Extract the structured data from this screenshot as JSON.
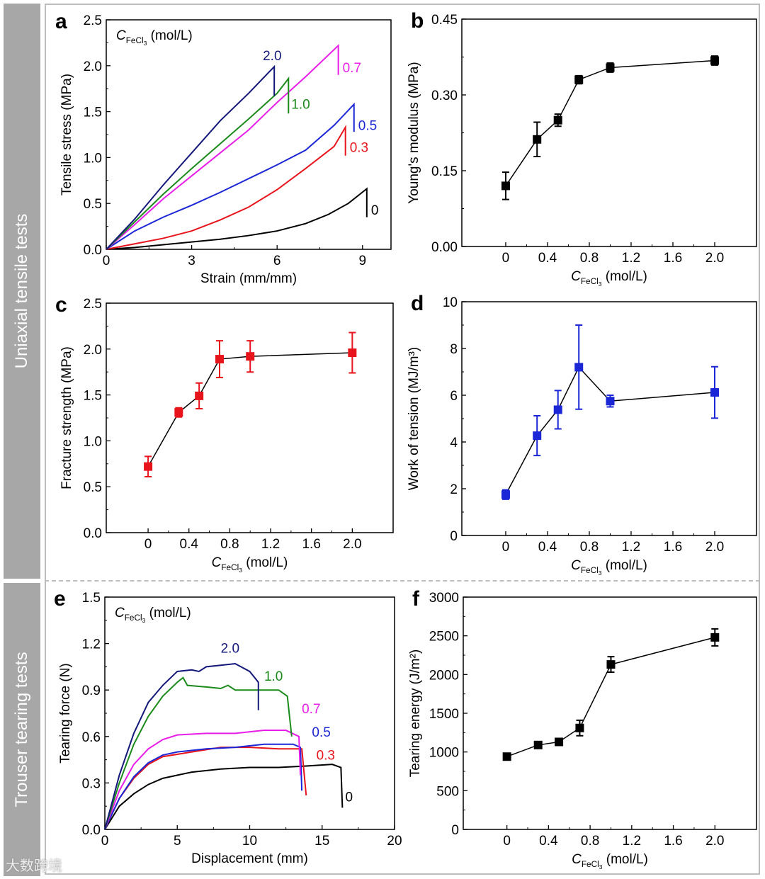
{
  "sections": [
    {
      "label": "Uniaxial tensile tests"
    },
    {
      "label": "Trouser tearing tests"
    }
  ],
  "watermark": "大数跨境",
  "conc_label": {
    "c": "C",
    "sub": "FeCl",
    "subsub": "3",
    "unit": " (mol/L)"
  },
  "colors": {
    "0": "#000000",
    "0.3": "#e8141c",
    "0.5": "#1b27d6",
    "0.7": "#e81ee8",
    "1.0": "#1a8a1a",
    "2.0": "#14187a",
    "red": "#e8141c",
    "blue": "#1b27d6",
    "black": "#000000"
  },
  "chart_data": [
    {
      "panel": "a",
      "type": "line",
      "xlabel": "Strain (mm/mm)",
      "ylabel": "Tensile stress (MPa)",
      "xlim": [
        0,
        10
      ],
      "ylim": [
        0,
        2.5
      ],
      "xticks": [
        0,
        3,
        6,
        9
      ],
      "yticks": [
        0.0,
        0.5,
        1.0,
        1.5,
        2.0,
        2.5
      ],
      "xtick_labels": [
        "0",
        "3",
        "6",
        "9"
      ],
      "ytick_labels": [
        "0.0",
        "0.5",
        "1.0",
        "1.5",
        "2.0",
        "2.5"
      ],
      "legend_title": true,
      "series": [
        {
          "name": "0",
          "points": [
            [
              0,
              0
            ],
            [
              1,
              0.02
            ],
            [
              2,
              0.05
            ],
            [
              3,
              0.08
            ],
            [
              4,
              0.11
            ],
            [
              5,
              0.15
            ],
            [
              6,
              0.2
            ],
            [
              7,
              0.28
            ],
            [
              7.8,
              0.38
            ],
            [
              8.5,
              0.5
            ],
            [
              9.15,
              0.66
            ],
            [
              9.15,
              0.35
            ]
          ],
          "label_at": [
            9.3,
            0.38
          ]
        },
        {
          "name": "0.3",
          "points": [
            [
              0,
              0
            ],
            [
              1,
              0.06
            ],
            [
              2,
              0.12
            ],
            [
              3,
              0.2
            ],
            [
              4,
              0.32
            ],
            [
              5,
              0.46
            ],
            [
              6,
              0.65
            ],
            [
              7,
              0.88
            ],
            [
              8,
              1.12
            ],
            [
              8.4,
              1.33
            ],
            [
              8.4,
              1.02
            ]
          ],
          "label_at": [
            8.55,
            1.06
          ]
        },
        {
          "name": "0.5",
          "points": [
            [
              0,
              0
            ],
            [
              1,
              0.2
            ],
            [
              2,
              0.35
            ],
            [
              3,
              0.48
            ],
            [
              4,
              0.62
            ],
            [
              5,
              0.77
            ],
            [
              6,
              0.92
            ],
            [
              7,
              1.08
            ],
            [
              8,
              1.35
            ],
            [
              8.7,
              1.58
            ],
            [
              8.7,
              1.28
            ]
          ],
          "label_at": [
            8.85,
            1.3
          ]
        },
        {
          "name": "0.7",
          "points": [
            [
              0,
              0
            ],
            [
              1,
              0.27
            ],
            [
              2,
              0.55
            ],
            [
              3,
              0.8
            ],
            [
              4,
              1.05
            ],
            [
              5,
              1.3
            ],
            [
              6,
              1.6
            ],
            [
              7,
              1.88
            ],
            [
              8.15,
              2.22
            ],
            [
              8.15,
              1.9
            ]
          ],
          "label_at": [
            8.3,
            1.93
          ]
        },
        {
          "name": "1.0",
          "points": [
            [
              0,
              0
            ],
            [
              1,
              0.3
            ],
            [
              2,
              0.6
            ],
            [
              3,
              0.88
            ],
            [
              4,
              1.15
            ],
            [
              5,
              1.42
            ],
            [
              6,
              1.7
            ],
            [
              6.4,
              1.86
            ],
            [
              6.4,
              1.48
            ]
          ],
          "label_at": [
            6.5,
            1.53
          ]
        },
        {
          "name": "2.0",
          "points": [
            [
              0,
              0
            ],
            [
              1,
              0.33
            ],
            [
              2,
              0.7
            ],
            [
              3,
              1.05
            ],
            [
              4,
              1.4
            ],
            [
              5,
              1.7
            ],
            [
              5.9,
              1.99
            ],
            [
              5.9,
              1.67
            ]
          ],
          "label_at": [
            5.5,
            2.06
          ]
        }
      ]
    },
    {
      "panel": "b",
      "type": "scatter",
      "ylabel": "Young's modulus (MPa)",
      "xlim": [
        -0.42,
        2.4
      ],
      "ylim": [
        0,
        0.45
      ],
      "color": "#000000",
      "xticks": [
        0,
        0.4,
        0.8,
        1.2,
        1.6,
        2.0
      ],
      "xtick_labels": [
        "0",
        "0.4",
        "0.8",
        "1.2",
        "1.6",
        "2.0"
      ],
      "yticks": [
        0,
        0.15,
        0.3,
        0.45
      ],
      "ytick_labels": [
        "0.00",
        "0.15",
        "0.30",
        "0.45"
      ],
      "x": [
        0,
        0.3,
        0.5,
        0.7,
        1.0,
        2.0
      ],
      "y": [
        0.12,
        0.212,
        0.25,
        0.33,
        0.354,
        0.368
      ],
      "err": [
        0.027,
        0.034,
        0.012,
        0.008,
        0.009,
        0.009
      ]
    },
    {
      "panel": "c",
      "type": "scatter",
      "ylabel": "Fracture strength (MPa)",
      "xlim": [
        -0.41,
        2.4
      ],
      "ylim": [
        0,
        2.5
      ],
      "color": "#e8141c",
      "xticks": [
        0,
        0.4,
        0.8,
        1.2,
        1.6,
        2.0
      ],
      "xtick_labels": [
        "0",
        "0.4",
        "0.8",
        "1.2",
        "1.6",
        "2.0"
      ],
      "yticks": [
        0,
        0.5,
        1.0,
        1.5,
        2.0,
        2.5
      ],
      "ytick_labels": [
        "0.0",
        "0.5",
        "1.0",
        "1.5",
        "2.0",
        "2.5"
      ],
      "x": [
        0,
        0.3,
        0.5,
        0.7,
        1.0,
        2.0
      ],
      "y": [
        0.72,
        1.31,
        1.49,
        1.89,
        1.92,
        1.96
      ],
      "err": [
        0.11,
        0.05,
        0.14,
        0.2,
        0.17,
        0.22
      ]
    },
    {
      "panel": "d",
      "type": "scatter",
      "ylabel": "Work of tension (MJ/m³)",
      "xlim": [
        -0.42,
        2.4
      ],
      "ylim": [
        0,
        10
      ],
      "color": "#1b27d6",
      "xticks": [
        0,
        0.4,
        0.8,
        1.2,
        1.6,
        2.0
      ],
      "xtick_labels": [
        "0",
        "0.4",
        "0.8",
        "1.2",
        "1.6",
        "2.0"
      ],
      "yticks": [
        0,
        2,
        4,
        6,
        8,
        10
      ],
      "ytick_labels": [
        "0",
        "2",
        "4",
        "6",
        "8",
        "10"
      ],
      "x": [
        0,
        0.3,
        0.5,
        0.7,
        1.0,
        2.0
      ],
      "y": [
        1.75,
        4.27,
        5.38,
        7.2,
        5.75,
        6.12
      ],
      "err": [
        0.2,
        0.85,
        0.82,
        1.8,
        0.25,
        1.1
      ]
    },
    {
      "panel": "e",
      "type": "line",
      "xlabel": "Displacement (mm)",
      "ylabel": "Tearing force (N)",
      "xlim": [
        0,
        20
      ],
      "ylim": [
        0,
        1.5
      ],
      "xticks": [
        0,
        5,
        10,
        15,
        20
      ],
      "xtick_labels": [
        "0",
        "5",
        "10",
        "15",
        "20"
      ],
      "yticks": [
        0,
        0.3,
        0.6,
        0.9,
        1.2,
        1.5
      ],
      "ytick_labels": [
        "0.0",
        "0.3",
        "0.6",
        "0.9",
        "1.2",
        "1.5"
      ],
      "legend_title": true,
      "series": [
        {
          "name": "0",
          "points": [
            [
              0,
              0
            ],
            [
              1,
              0.15
            ],
            [
              2,
              0.23
            ],
            [
              3,
              0.29
            ],
            [
              4,
              0.33
            ],
            [
              6,
              0.37
            ],
            [
              8,
              0.39
            ],
            [
              10,
              0.4
            ],
            [
              12,
              0.4
            ],
            [
              14,
              0.41
            ],
            [
              15.7,
              0.42
            ],
            [
              16.3,
              0.4
            ],
            [
              16.4,
              0.14
            ]
          ],
          "label_at": [
            16.6,
            0.18
          ]
        },
        {
          "name": "0.3",
          "points": [
            [
              0,
              0
            ],
            [
              1,
              0.2
            ],
            [
              2,
              0.33
            ],
            [
              3,
              0.42
            ],
            [
              4,
              0.47
            ],
            [
              6,
              0.5
            ],
            [
              8,
              0.53
            ],
            [
              10,
              0.53
            ],
            [
              12,
              0.52
            ],
            [
              13.6,
              0.52
            ],
            [
              13.9,
              0.22
            ]
          ],
          "label_at": [
            14.6,
            0.45
          ]
        },
        {
          "name": "0.5",
          "points": [
            [
              0,
              0
            ],
            [
              1,
              0.2
            ],
            [
              2,
              0.34
            ],
            [
              3,
              0.43
            ],
            [
              4,
              0.48
            ],
            [
              5,
              0.5
            ],
            [
              7,
              0.52
            ],
            [
              9,
              0.53
            ],
            [
              11,
              0.55
            ],
            [
              13,
              0.55
            ],
            [
              13.5,
              0.53
            ],
            [
              13.6,
              0.25
            ]
          ],
          "label_at": [
            14.3,
            0.6
          ]
        },
        {
          "name": "0.7",
          "points": [
            [
              0,
              0
            ],
            [
              1,
              0.25
            ],
            [
              2,
              0.42
            ],
            [
              3,
              0.52
            ],
            [
              4,
              0.58
            ],
            [
              5,
              0.61
            ],
            [
              7,
              0.62
            ],
            [
              9,
              0.62
            ],
            [
              11,
              0.64
            ],
            [
              12.5,
              0.64
            ],
            [
              13.4,
              0.6
            ],
            [
              13.5,
              0.35
            ]
          ],
          "label_at": [
            13.6,
            0.75
          ]
        },
        {
          "name": "1.0",
          "points": [
            [
              0,
              0
            ],
            [
              1,
              0.3
            ],
            [
              2,
              0.55
            ],
            [
              3,
              0.73
            ],
            [
              4,
              0.86
            ],
            [
              5,
              0.95
            ],
            [
              5.4,
              0.98
            ],
            [
              5.7,
              0.93
            ],
            [
              7,
              0.92
            ],
            [
              8,
              0.91
            ],
            [
              8.5,
              0.93
            ],
            [
              9,
              0.9
            ],
            [
              10,
              0.9
            ],
            [
              12,
              0.9
            ],
            [
              12.6,
              0.86
            ],
            [
              12.9,
              0.6
            ]
          ],
          "label_at": [
            11,
            0.96
          ]
        },
        {
          "name": "2.0",
          "points": [
            [
              0,
              0
            ],
            [
              1,
              0.35
            ],
            [
              2,
              0.62
            ],
            [
              3,
              0.82
            ],
            [
              4,
              0.93
            ],
            [
              5,
              1.02
            ],
            [
              6,
              1.03
            ],
            [
              6.5,
              1.02
            ],
            [
              7,
              1.05
            ],
            [
              8,
              1.06
            ],
            [
              9,
              1.07
            ],
            [
              10,
              1.02
            ],
            [
              10.6,
              0.95
            ],
            [
              10.6,
              0.77
            ]
          ],
          "label_at": [
            8,
            1.14
          ]
        }
      ]
    },
    {
      "panel": "f",
      "type": "scatter",
      "ylabel": "Tearing energy (J/m²)",
      "xlim": [
        -0.42,
        2.4
      ],
      "ylim": [
        0,
        3000
      ],
      "color": "#000000",
      "xticks": [
        0,
        0.4,
        0.8,
        1.2,
        1.6,
        2.0
      ],
      "xtick_labels": [
        "0",
        "0.4",
        "0.8",
        "1.2",
        "1.6",
        "2.0"
      ],
      "yticks": [
        0,
        500,
        1000,
        1500,
        2000,
        2500,
        3000
      ],
      "ytick_labels": [
        "0",
        "500",
        "1000",
        "1500",
        "2000",
        "2500",
        "3000"
      ],
      "x": [
        0,
        0.3,
        0.5,
        0.7,
        1.0,
        2.0
      ],
      "y": [
        940,
        1090,
        1130,
        1310,
        2130,
        2480
      ],
      "err": [
        30,
        40,
        40,
        100,
        100,
        110
      ]
    }
  ]
}
